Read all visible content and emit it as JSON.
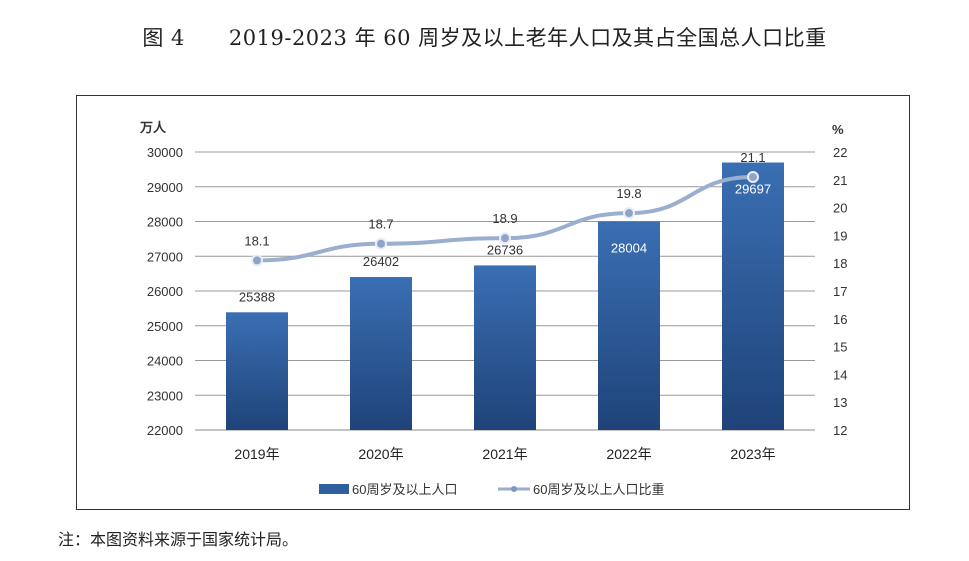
{
  "figure": {
    "number": "图 4",
    "title": "2019-2023 年 60 周岁及以上老年人口及其占全国总人口比重"
  },
  "note": "注：本图资料来源于国家统计局。",
  "chart_data": {
    "type": "bar+line",
    "categories": [
      "2019年",
      "2020年",
      "2021年",
      "2022年",
      "2023年"
    ],
    "y_left": {
      "label": "万人",
      "range": [
        22000,
        30000
      ],
      "ticks": [
        22000,
        23000,
        24000,
        25000,
        26000,
        27000,
        28000,
        29000,
        30000
      ]
    },
    "y_right": {
      "label": "%",
      "range": [
        12,
        22
      ],
      "ticks": [
        12,
        13,
        14,
        15,
        16,
        17,
        18,
        19,
        20,
        21,
        22
      ]
    },
    "grid": true,
    "legend_position": "bottom",
    "series": [
      {
        "name": "60周岁及以上人口",
        "type": "bar",
        "axis": "left",
        "values": [
          25388,
          26402,
          26736,
          28004,
          29697
        ],
        "color": "#2f5f9e"
      },
      {
        "name": "60周岁及以上人口比重",
        "type": "line",
        "axis": "right",
        "values": [
          18.1,
          18.7,
          18.9,
          19.8,
          21.1
        ],
        "color": "#9aaed0"
      }
    ]
  }
}
